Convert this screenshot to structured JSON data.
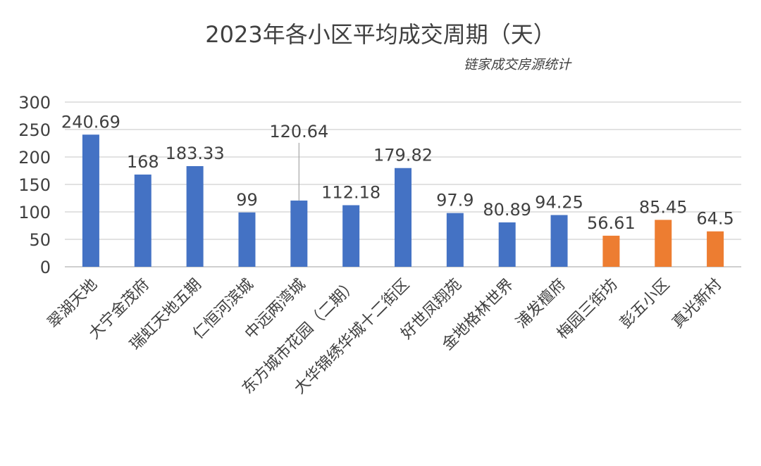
{
  "chart_data": {
    "type": "bar",
    "title": "2023年各小区平均成交周期（天）",
    "subtitle": "链家成交房源统计",
    "categories": [
      "翠湖天地",
      "大宁金茂府",
      "瑞虹天地五期",
      "仁恒河滨城",
      "中远两湾城",
      "东方城市花园（二期）",
      "大华锦绣华城十二街区",
      "好世凤翔苑",
      "金地格林世界",
      "浦发檀府",
      "梅园三街坊",
      "彭五小区",
      "真光新村"
    ],
    "values": [
      240.69,
      168,
      183.33,
      99,
      120.64,
      112.18,
      179.82,
      97.9,
      80.89,
      94.25,
      56.61,
      85.45,
      64.5
    ],
    "data_labels": [
      "240.69",
      "168",
      "183.33",
      "99",
      "120.64",
      "112.18",
      "179.82",
      "97.9",
      "80.89",
      "94.25",
      "56.61",
      "85.45",
      "64.5"
    ],
    "bar_colors": [
      "#4472C4",
      "#4472C4",
      "#4472C4",
      "#4472C4",
      "#4472C4",
      "#4472C4",
      "#4472C4",
      "#4472C4",
      "#4472C4",
      "#4472C4",
      "#ED7D31",
      "#ED7D31",
      "#ED7D31"
    ],
    "ylim": [
      0,
      300
    ],
    "yticks": [
      0,
      50,
      100,
      150,
      200,
      250,
      300
    ],
    "xlabel": "",
    "ylabel": "",
    "grid": true,
    "legend": "none"
  },
  "colors": {
    "primary_bar": "#4472C4",
    "highlight_bar": "#ED7D31",
    "gridline": "#D9D9D9",
    "text": "#404040"
  }
}
